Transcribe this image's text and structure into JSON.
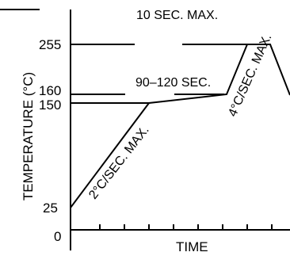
{
  "ylabel": "TEMPERATURE (°C)",
  "xlabel": "TIME",
  "y_ticks": [
    "255",
    "160",
    "150",
    "25",
    "0"
  ],
  "annotations": {
    "peak_time": "10 SEC. MAX.",
    "soak_time": "90–120 SEC.",
    "ramp_up": "2°C/SEC. MAX.",
    "ramp_down": "4°C/SEC. MAX."
  }
}
